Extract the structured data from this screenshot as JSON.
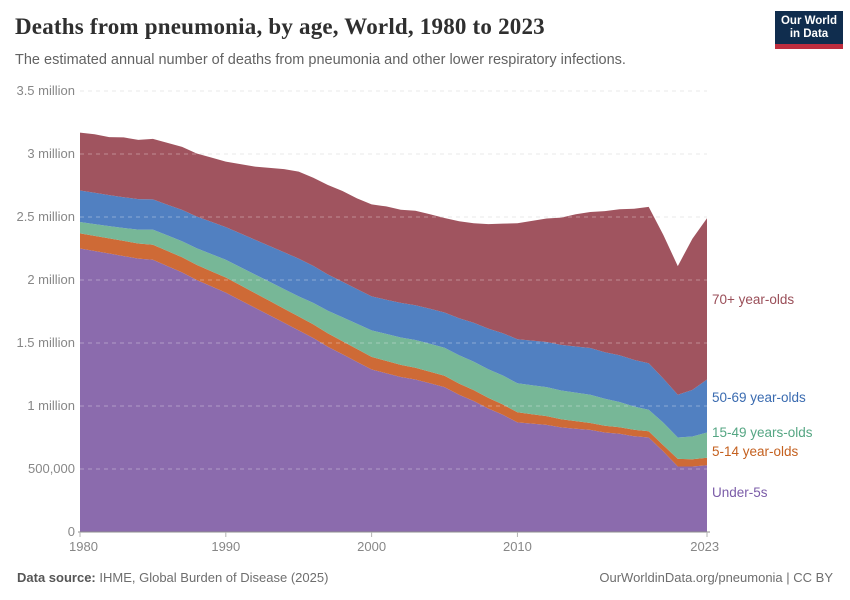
{
  "header": {
    "title": "Deaths from pneumonia, by age, World, 1980 to 2023",
    "subtitle": "The estimated annual number of deaths from pneumonia and other lower respiratory infections.",
    "logo": {
      "line1": "Our World",
      "line2": "in Data",
      "bg_color": "#102D4E",
      "accent_color": "#BE2D3E"
    }
  },
  "footer": {
    "source_label": "Data source:",
    "source_text": " IHME, Global Burden of Disease (2025)",
    "attribution": "OurWorldinData.org/pneumonia | CC BY"
  },
  "chart_data": {
    "type": "area",
    "stacked": true,
    "title": "Deaths from pneumonia, by age, World, 1980 to 2023",
    "xlabel": "",
    "ylabel": "",
    "unit": "deaths (millions)",
    "grid": "horizontal-dashed",
    "legend_position": "right-of-plot",
    "ylim": [
      0,
      3.5
    ],
    "yticks": [
      {
        "v": 0,
        "label": "0"
      },
      {
        "v": 0.5,
        "label": "500,000"
      },
      {
        "v": 1,
        "label": "1 million"
      },
      {
        "v": 1.5,
        "label": "1.5 million"
      },
      {
        "v": 2,
        "label": "2 million"
      },
      {
        "v": 2.5,
        "label": "2.5 million"
      },
      {
        "v": 3,
        "label": "3 million"
      },
      {
        "v": 3.5,
        "label": "3.5 million"
      }
    ],
    "xticks": [
      1980,
      1990,
      2000,
      2010,
      2023
    ],
    "x": [
      1980,
      1981,
      1982,
      1983,
      1984,
      1985,
      1986,
      1987,
      1988,
      1989,
      1990,
      1991,
      1992,
      1993,
      1994,
      1995,
      1996,
      1997,
      1998,
      1999,
      2000,
      2001,
      2002,
      2003,
      2004,
      2005,
      2006,
      2007,
      2008,
      2009,
      2010,
      2011,
      2012,
      2013,
      2014,
      2015,
      2016,
      2017,
      2018,
      2019,
      2020,
      2021,
      2022,
      2023
    ],
    "series": [
      {
        "id": "under-5s",
        "label": "Under-5s",
        "color": "#8B6BAD",
        "label_color": "#7B5CA8",
        "label_anchor": 0.32,
        "values": [
          2.25,
          2.23,
          2.21,
          2.19,
          2.17,
          2.16,
          2.11,
          2.06,
          2.0,
          1.95,
          1.9,
          1.84,
          1.78,
          1.72,
          1.66,
          1.6,
          1.54,
          1.47,
          1.41,
          1.35,
          1.29,
          1.26,
          1.23,
          1.21,
          1.18,
          1.15,
          1.09,
          1.04,
          0.98,
          0.93,
          0.87,
          0.86,
          0.85,
          0.83,
          0.82,
          0.81,
          0.79,
          0.78,
          0.76,
          0.75,
          0.64,
          0.52,
          0.52,
          0.53
        ]
      },
      {
        "id": "5-14-year-olds",
        "label": "5-14 year-olds",
        "color": "#CE6A36",
        "label_color": "#C4601F",
        "label_anchor": 0.64,
        "values": [
          0.12,
          0.12,
          0.12,
          0.12,
          0.12,
          0.12,
          0.12,
          0.12,
          0.12,
          0.12,
          0.12,
          0.118,
          0.116,
          0.114,
          0.112,
          0.11,
          0.108,
          0.106,
          0.104,
          0.102,
          0.1,
          0.098,
          0.096,
          0.094,
          0.092,
          0.09,
          0.088,
          0.086,
          0.084,
          0.082,
          0.08,
          0.075,
          0.07,
          0.065,
          0.06,
          0.055,
          0.054,
          0.052,
          0.051,
          0.05,
          0.048,
          0.06,
          0.058,
          0.06
        ]
      },
      {
        "id": "15-49-years-olds",
        "label": "15-49 years-olds",
        "color": "#77B797",
        "label_color": "#55A683",
        "label_anchor": 0.79,
        "values": [
          0.09,
          0.094,
          0.098,
          0.103,
          0.11,
          0.12,
          0.124,
          0.128,
          0.132,
          0.136,
          0.14,
          0.144,
          0.148,
          0.152,
          0.156,
          0.16,
          0.17,
          0.18,
          0.19,
          0.2,
          0.21,
          0.214,
          0.218,
          0.22,
          0.222,
          0.222,
          0.224,
          0.226,
          0.228,
          0.23,
          0.23,
          0.23,
          0.23,
          0.228,
          0.226,
          0.225,
          0.213,
          0.2,
          0.185,
          0.17,
          0.18,
          0.17,
          0.18,
          0.2
        ]
      },
      {
        "id": "50-69-year-olds",
        "label": "50-69 year-olds",
        "color": "#5180C1",
        "label_color": "#3A6BB0",
        "label_anchor": 1.07,
        "values": [
          0.25,
          0.248,
          0.246,
          0.244,
          0.242,
          0.24,
          0.244,
          0.248,
          0.252,
          0.256,
          0.26,
          0.268,
          0.276,
          0.284,
          0.292,
          0.3,
          0.294,
          0.288,
          0.282,
          0.276,
          0.27,
          0.272,
          0.274,
          0.276,
          0.278,
          0.28,
          0.294,
          0.308,
          0.322,
          0.336,
          0.35,
          0.354,
          0.358,
          0.362,
          0.366,
          0.37,
          0.37,
          0.37,
          0.37,
          0.37,
          0.35,
          0.34,
          0.37,
          0.42
        ]
      },
      {
        "id": "70plus-year-olds",
        "label": "70+ year-olds",
        "color": "#A0545F",
        "label_color": "#9A4E58",
        "label_anchor": 1.85,
        "values": [
          0.46,
          0.465,
          0.46,
          0.475,
          0.47,
          0.48,
          0.49,
          0.5,
          0.5,
          0.51,
          0.52,
          0.55,
          0.58,
          0.62,
          0.66,
          0.69,
          0.7,
          0.71,
          0.72,
          0.72,
          0.73,
          0.74,
          0.74,
          0.75,
          0.75,
          0.75,
          0.77,
          0.79,
          0.83,
          0.87,
          0.92,
          0.95,
          0.98,
          1.01,
          1.05,
          1.08,
          1.12,
          1.16,
          1.2,
          1.24,
          1.14,
          1.02,
          1.2,
          1.28
        ]
      }
    ]
  }
}
